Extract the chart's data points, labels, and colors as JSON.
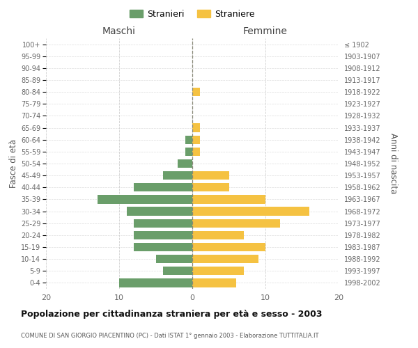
{
  "age_groups": [
    "100+",
    "95-99",
    "90-94",
    "85-89",
    "80-84",
    "75-79",
    "70-74",
    "65-69",
    "60-64",
    "55-59",
    "50-54",
    "45-49",
    "40-44",
    "35-39",
    "30-34",
    "25-29",
    "20-24",
    "15-19",
    "10-14",
    "5-9",
    "0-4"
  ],
  "birth_years": [
    "≤ 1902",
    "1903-1907",
    "1908-1912",
    "1913-1917",
    "1918-1922",
    "1923-1927",
    "1928-1932",
    "1933-1937",
    "1938-1942",
    "1943-1947",
    "1948-1952",
    "1953-1957",
    "1958-1962",
    "1963-1967",
    "1968-1972",
    "1973-1977",
    "1978-1982",
    "1983-1987",
    "1988-1992",
    "1993-1997",
    "1998-2002"
  ],
  "maschi": [
    0,
    0,
    0,
    0,
    0,
    0,
    0,
    0,
    1,
    1,
    2,
    4,
    8,
    13,
    9,
    8,
    8,
    8,
    5,
    4,
    10
  ],
  "femmine": [
    0,
    0,
    0,
    0,
    1,
    0,
    0,
    1,
    1,
    1,
    0,
    5,
    5,
    10,
    16,
    12,
    7,
    10,
    9,
    7,
    6
  ],
  "color_maschi": "#6a9e6a",
  "color_femmine": "#f5c242",
  "title": "Popolazione per cittadinanza straniera per età e sesso - 2003",
  "subtitle": "COMUNE DI SAN GIORGIO PIACENTINO (PC) - Dati ISTAT 1° gennaio 2003 - Elaborazione TUTTITALIA.IT",
  "xlabel_left": "Maschi",
  "xlabel_right": "Femmine",
  "ylabel_left": "Fasce di età",
  "ylabel_right": "Anni di nascita",
  "xlim": 20,
  "legend_maschi": "Stranieri",
  "legend_femmine": "Straniere",
  "background_color": "#ffffff",
  "grid_color": "#cccccc"
}
